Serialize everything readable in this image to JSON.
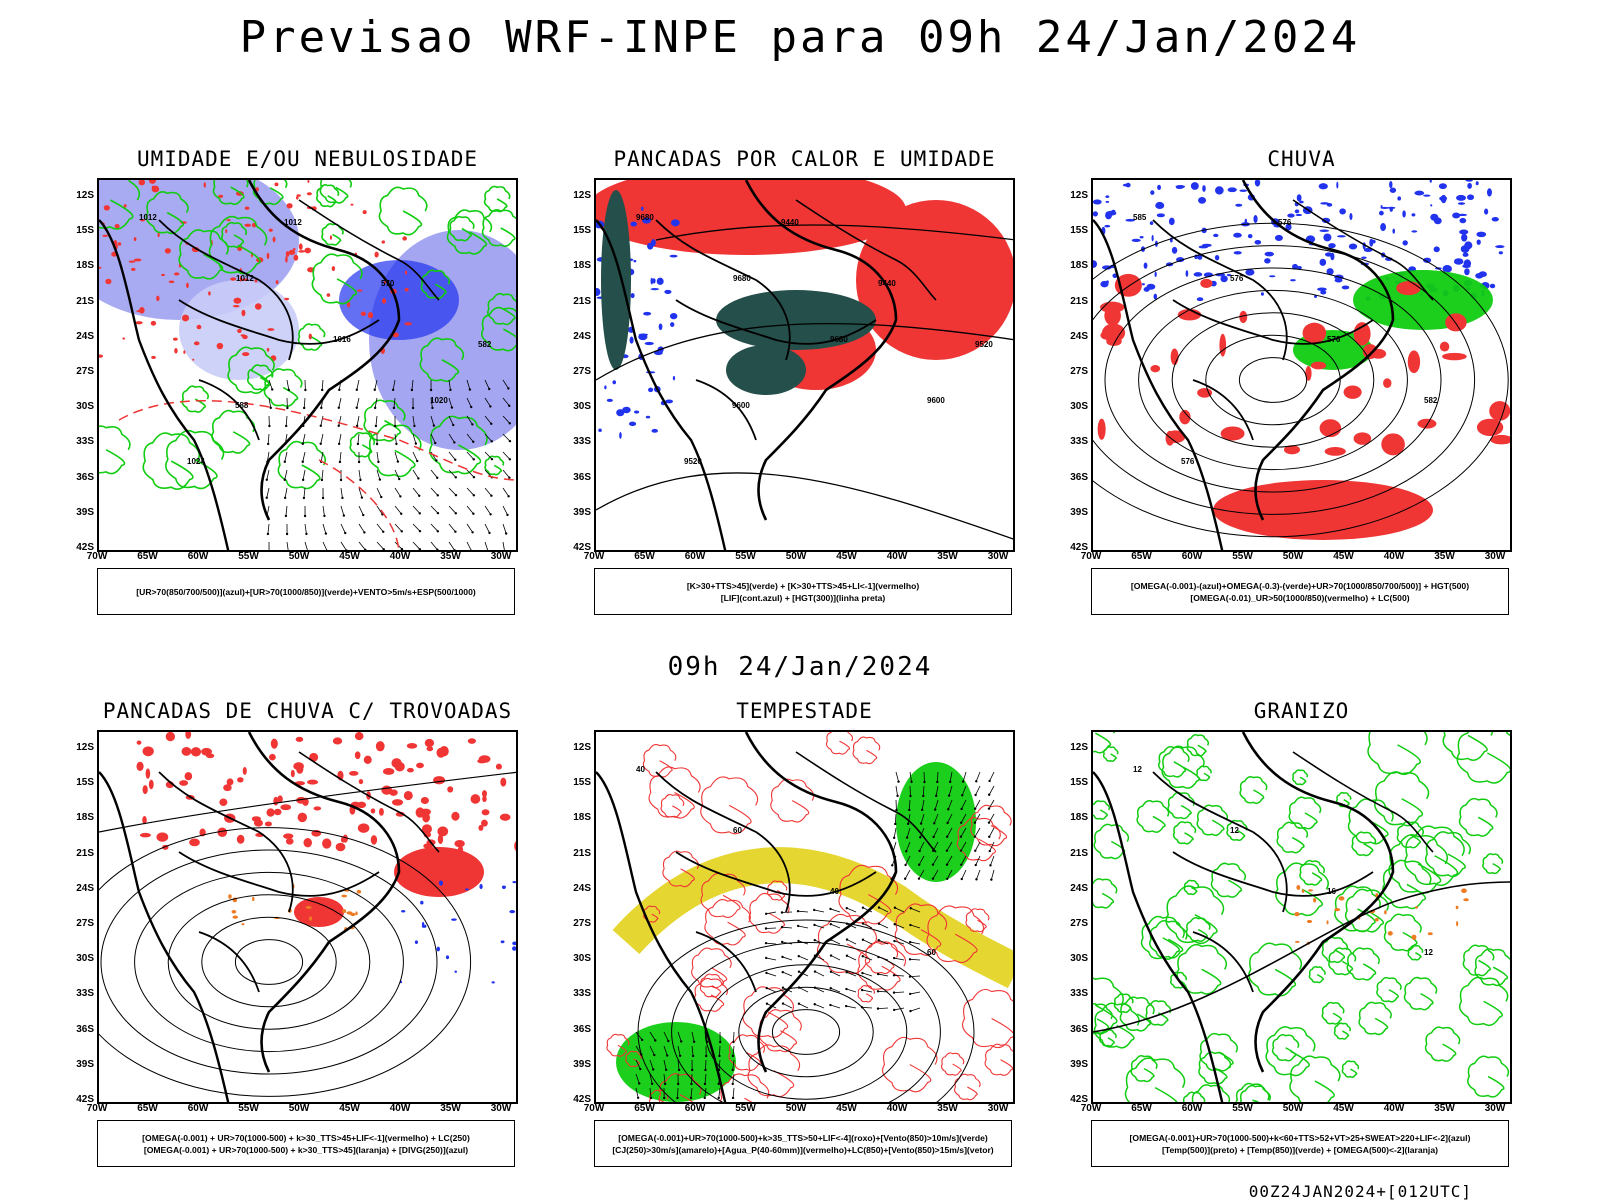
{
  "title": "Previsao WRF-INPE  para 09h 24/Jan/2024",
  "mid_title": "09h 24/Jan/2024",
  "footer": "00Z24JAN2024+[012UTC]",
  "lat_labels": [
    "12S",
    "15S",
    "18S",
    "21S",
    "24S",
    "27S",
    "30S",
    "33S",
    "36S",
    "39S",
    "42S"
  ],
  "lon_labels": [
    "70W",
    "65W",
    "60W",
    "55W",
    "50W",
    "45W",
    "40W",
    "35W",
    "30W"
  ],
  "colors": {
    "blue": "#2233ee",
    "light_blue": "#9a9cf0",
    "pale_blue": "#c9ccf7",
    "green": "#11cc11",
    "red": "#f03535",
    "dark_teal": "#244f4a",
    "yellow": "#e5d632",
    "orange": "#ee7a22"
  },
  "panels": [
    {
      "id": "umidade",
      "title": "UMIDADE E/OU NEBULOSIDADE",
      "legend": [
        "[UR>70(850/700/500)](azul)+[UR>70(1000/850)](verde)+VENTO>5m/s+ESP(500/1000)"
      ],
      "contour_labels": [
        "1012",
        "1012",
        "1016",
        "1020",
        "1024",
        "1012",
        "570",
        "582",
        "588"
      ]
    },
    {
      "id": "pancadas-calor",
      "title": "PANCADAS POR CALOR E UMIDADE",
      "legend": [
        "[K>30+TTS>45](verde) + [K>30+TTS>45+LI<-1](vermelho)",
        "[LIF](cont.azul) + [HGT(300)](linha preta)"
      ],
      "contour_labels": [
        "9680",
        "9680",
        "9680",
        "9600",
        "9520",
        "9440",
        "9440",
        "9520",
        "9600"
      ]
    },
    {
      "id": "chuva",
      "title": "CHUVA",
      "legend": [
        "[OMEGA(-0.001)-(azul)+OMEGA(-0.3)-(verde)+UR>70(1000/850/700/500)] + HGT(500)",
        "[OMEGA(-0.01)_UR>50(1000/850)(vermelho) + LC(500)"
      ],
      "contour_labels": [
        "585",
        "576",
        "576",
        "582",
        "576",
        "576"
      ]
    },
    {
      "id": "pancadas-trovoadas",
      "title": "PANCADAS DE CHUVA C/ TROVOADAS",
      "legend": [
        "[OMEGA(-0.001) + UR>70(1000-500) + k>30_TTS>45+LIF<-1](vermelho) + LC(250)",
        "[OMEGA(-0.001) + UR>70(1000-500) + k>30_TTS>45](laranja) + [DIVG(250)](azul)"
      ],
      "contour_labels": []
    },
    {
      "id": "tempestade",
      "title": "TEMPESTADE",
      "legend": [
        "[OMEGA(-0.001)+UR>70(1000-500)+k>35_TTS>50+LIF<-4](roxo)+[Vento(850)>10m/s](verde)",
        "[CJ(250)>30m/s](amarelo)+[Agua_P(40-60mm)](vermelho)+LC(850)+[Vento(850)>15m/s](vetor)"
      ],
      "contour_labels": [
        "40",
        "60",
        "40",
        "60"
      ]
    },
    {
      "id": "granizo",
      "title": "GRANIZO",
      "legend": [
        "[OMEGA(-0.001)+UR>70(1000-500)+k<60+TTS>52+VT>25+SWEAT>220+LIF<-2](azul)",
        "[Temp(500)](preto) + [Temp(850)](verde) + [OMEGA(500)<-2](laranja)"
      ],
      "contour_labels": [
        "12",
        "12",
        "16",
        "12"
      ]
    }
  ]
}
